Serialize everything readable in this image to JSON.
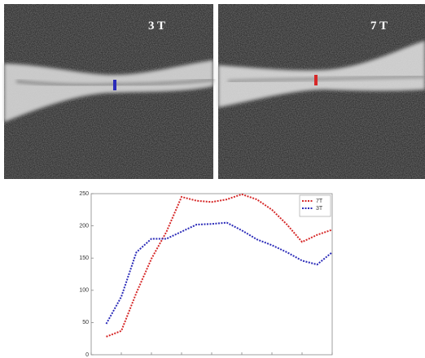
{
  "panels": [
    {
      "label": "3 T"
    },
    {
      "label": "7 T"
    }
  ],
  "chart_data": {
    "type": "line",
    "x": [
      1,
      2,
      3,
      4,
      5,
      6,
      7,
      8,
      9,
      10,
      11,
      12,
      13,
      14,
      15,
      16
    ],
    "series": [
      {
        "name": "7T",
        "color": "#d62828",
        "values": [
          28,
          37,
          96,
          149,
          191,
          245,
          239,
          237,
          241,
          249,
          241,
          225,
          202,
          175,
          186,
          194
        ]
      },
      {
        "name": "3T",
        "color": "#2a2ab8",
        "values": [
          48,
          90,
          159,
          180,
          180,
          191,
          202,
          203,
          205,
          193,
          179,
          170,
          159,
          146,
          140,
          159
        ]
      }
    ],
    "xlim": [
      0,
      16
    ],
    "xticks": [
      0,
      2,
      4,
      6,
      8,
      10,
      12,
      14,
      16
    ],
    "ylim": [
      0,
      250
    ],
    "yticks": [
      0,
      50,
      100,
      150,
      200,
      250
    ],
    "legend": "upper right"
  }
}
